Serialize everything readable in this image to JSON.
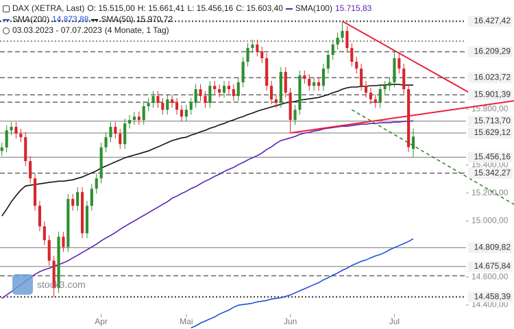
{
  "chart_data": {
    "type": "candlestick",
    "title": "DAX (XETRA, Last)",
    "ohlc_labels": [
      "O: 15.515,00",
      "H: 15.661,41",
      "L: 15.456,16",
      "C: 15.603,40"
    ],
    "date_range": "03.03.2023 - 07.07.2023",
    "period": "(4 Monate, 1 Tag)",
    "watermark": "stock3.com",
    "categories": [
      null,
      null,
      null,
      null,
      null,
      null,
      null,
      null,
      null,
      null,
      null,
      null,
      null,
      null,
      null,
      null,
      null,
      null,
      null,
      null,
      null,
      "Apr",
      null,
      null,
      null,
      null,
      null,
      null,
      null,
      null,
      null,
      null,
      null,
      null,
      null,
      null,
      null,
      null,
      null,
      "Mai",
      null,
      null,
      null,
      null,
      null,
      null,
      null,
      null,
      null,
      null,
      null,
      null,
      null,
      null,
      null,
      null,
      null,
      null,
      null,
      null,
      null,
      "Jun",
      null,
      null,
      null,
      null,
      null,
      null,
      null,
      null,
      null,
      null,
      null,
      null,
      null,
      null,
      null,
      null,
      null,
      null,
      null,
      null,
      null,
      "Jul",
      null,
      null,
      null,
      null
    ],
    "open": [
      15500,
      15526,
      15648,
      15673,
      15624,
      15599,
      15428,
      15305,
      15109,
      14962,
      14864,
      14717,
      14521,
      14888,
      14815,
      15158,
      15109,
      15207,
      14913,
      15109,
      15231,
      15305,
      15526,
      15599,
      15673,
      15624,
      15550,
      15697,
      15722,
      15746,
      15722,
      15820,
      15844,
      15893,
      15844,
      15795,
      15869,
      15844,
      15795,
      15746,
      15795,
      15844,
      15942,
      15893,
      15844,
      15966,
      15942,
      15917,
      15966,
      15942,
      15893,
      15991,
      16138,
      16236,
      16261,
      16212,
      16163,
      15966,
      15869,
      15844,
      16065,
      15917,
      15722,
      15795,
      16040,
      16016,
      15966,
      15991,
      15966,
      16089,
      16187,
      16261,
      16310,
      16358,
      16236,
      16138,
      16089,
      15966,
      15917,
      15869,
      15844,
      15942,
      15966,
      15991,
      16163,
      16089,
      15942,
      15515
    ],
    "high": [
      15561,
      15683,
      15708,
      15708,
      15659,
      15634,
      15463,
      15340,
      15144,
      14997,
      14899,
      14752,
      14923,
      14923,
      15193,
      15193,
      15242,
      15242,
      15144,
      15266,
      15340,
      15561,
      15634,
      15708,
      15708,
      15659,
      15732,
      15757,
      15781,
      15781,
      15855,
      15879,
      15928,
      15928,
      15879,
      15904,
      15904,
      15879,
      15830,
      15830,
      15879,
      15977,
      15977,
      15928,
      16001,
      16001,
      15977,
      16001,
      16001,
      15977,
      16026,
      16173,
      16271,
      16296,
      16296,
      16247,
      16198,
      16001,
      15904,
      16100,
      16100,
      15952,
      15830,
      16075,
      16075,
      16051,
      16026,
      16026,
      16124,
      16222,
      16296,
      16345,
      16427.42,
      16393,
      16271,
      16173,
      16124,
      16001,
      15952,
      15904,
      15977,
      16001,
      16026,
      16209.29,
      16198,
      16124,
      15977,
      15661.41
    ],
    "low": [
      15465,
      15491,
      15613,
      15589,
      15564,
      15393,
      15270,
      15074,
      14927,
      14829,
      14682,
      14458.39,
      14486,
      14780,
      14780,
      15074,
      15074,
      14878,
      14878,
      15074,
      15196,
      15270,
      15491,
      15564,
      15589,
      15515,
      15515,
      15662,
      15687,
      15687,
      15687,
      15785,
      15809,
      15809,
      15760,
      15760,
      15809,
      15760,
      15711,
      15711,
      15760,
      15809,
      15858,
      15809,
      15809,
      15907,
      15882,
      15882,
      15907,
      15858,
      15858,
      15956,
      16103,
      16201,
      16177,
      16128,
      15931,
      15834,
      15809,
      15809,
      15882,
      15629.12,
      15687,
      15760,
      15981,
      15931,
      15931,
      15931,
      15931,
      16054,
      16152,
      16226,
      16275,
      16201,
      16103,
      16054,
      15931,
      15882,
      15834,
      15809,
      15809,
      15907,
      15931,
      15956,
      16054,
      15907,
      15493,
      15456.16
    ],
    "close": [
      15526,
      15648,
      15673,
      15624,
      15599,
      15428,
      15305,
      15109,
      14962,
      14864,
      14717,
      14521,
      14888,
      14815,
      15158,
      15109,
      15207,
      14913,
      15109,
      15231,
      15305,
      15526,
      15599,
      15673,
      15624,
      15550,
      15697,
      15722,
      15746,
      15722,
      15820,
      15844,
      15893,
      15844,
      15795,
      15869,
      15844,
      15795,
      15746,
      15795,
      15844,
      15942,
      15893,
      15844,
      15966,
      15942,
      15917,
      15966,
      15942,
      15893,
      15991,
      16138,
      16236,
      16261,
      16212,
      16163,
      15966,
      15869,
      15844,
      16065,
      15917,
      15722,
      15795,
      16040,
      16016,
      15966,
      15991,
      15966,
      16089,
      16187,
      16261,
      16310,
      16358,
      16236,
      16138,
      16089,
      15966,
      15917,
      15869,
      15844,
      15942,
      15966,
      15991,
      16163,
      16089,
      15942,
      15528,
      15603.4
    ],
    "up_color": "#2f8f2f",
    "down_color": "#d8262b",
    "series": [
      {
        "name": "SMA(100)",
        "color": "#5b22b0",
        "legend_value": "15.715,83",
        "values": [
          14448,
          14472,
          14496,
          14521,
          14546,
          14570,
          14595,
          14619,
          14639,
          14653,
          14663,
          14678,
          14688,
          14702,
          14717,
          14737,
          14756,
          14776,
          14795,
          14815,
          14835,
          14859,
          14879,
          14898,
          14918,
          14942,
          14962,
          14982,
          15001,
          15021,
          15040,
          15060,
          15080,
          15099,
          15119,
          15138,
          15163,
          15178,
          15197,
          15212,
          15232,
          15246,
          15266,
          15285,
          15300,
          15320,
          15334,
          15354,
          15369,
          15383,
          15403,
          15418,
          15437,
          15452,
          15467,
          15486,
          15511,
          15530,
          15555,
          15575,
          15584,
          15594,
          15604,
          15619,
          15628,
          15633,
          15643,
          15648,
          15658,
          15663,
          15668,
          15673,
          15677,
          15677,
          15682,
          15687,
          15692,
          15692,
          15697,
          15697,
          15702,
          15702,
          15702,
          15707,
          15707,
          15712,
          15712,
          15715.83
        ]
      },
      {
        "name": "SMA(200)",
        "color": "#1f4fd8",
        "legend_value": "14.873,88",
        "values": [
          null,
          null,
          null,
          null,
          null,
          null,
          null,
          null,
          null,
          null,
          null,
          null,
          null,
          null,
          null,
          null,
          null,
          null,
          null,
          null,
          null,
          null,
          null,
          null,
          null,
          null,
          null,
          null,
          null,
          null,
          null,
          null,
          null,
          null,
          null,
          null,
          null,
          null,
          null,
          null,
          14237,
          14251,
          14271,
          14286,
          14301,
          14315,
          14335,
          14350,
          14364,
          14384,
          14399,
          14404,
          14408,
          14413,
          14423,
          14428,
          14433,
          14443,
          14448,
          14452,
          14462,
          14472,
          14487,
          14502,
          14516,
          14531,
          14546,
          14560,
          14580,
          14595,
          14614,
          14629,
          14648,
          14663,
          14683,
          14697,
          14712,
          14722,
          14737,
          14751,
          14761,
          14776,
          14795,
          14810,
          14825,
          14839,
          14854,
          14873.88
        ]
      },
      {
        "name": "SMA(50)",
        "color": "#111111",
        "legend_value": "15.970,72",
        "values": [
          15036,
          15085,
          15138,
          15182,
          15222,
          15251,
          15256,
          15261,
          15266,
          15271,
          15276,
          15280,
          15285,
          15285,
          15290,
          15295,
          15305,
          15315,
          15330,
          15344,
          15359,
          15379,
          15393,
          15408,
          15423,
          15437,
          15452,
          15462,
          15472,
          15481,
          15491,
          15501,
          15516,
          15530,
          15545,
          15560,
          15575,
          15584,
          15594,
          15599,
          15614,
          15624,
          15638,
          15648,
          15663,
          15673,
          15687,
          15697,
          15712,
          15722,
          15736,
          15746,
          15761,
          15771,
          15785,
          15795,
          15805,
          15815,
          15824,
          15834,
          15844,
          15849,
          15854,
          15864,
          15868,
          15873,
          15878,
          15883,
          15893,
          15903,
          15917,
          15927,
          15942,
          15952,
          15957,
          15957,
          15962,
          15962,
          15967,
          15967,
          15971,
          15971,
          15976,
          15976,
          15976,
          15971,
          15971,
          15970.72
        ]
      }
    ],
    "levels": [
      {
        "value": 16427.42,
        "label": "16.427,42",
        "style": "heavy-dotted"
      },
      {
        "value": 16285,
        "style": "dotted"
      },
      {
        "value": 16209.29,
        "label": "16.209,29",
        "style": "dashed"
      },
      {
        "value": 16023.72,
        "label": "16.023,72",
        "style": "dashed"
      },
      {
        "value": 15901.39,
        "label": "15.901,39",
        "style": "dashed"
      },
      {
        "value": 15849,
        "style": "dashed"
      },
      {
        "value": 15713.7,
        "label": "15.713,70",
        "style": "solid"
      },
      {
        "value": 15629.12,
        "label": "15.629,12",
        "style": "solid"
      },
      {
        "value": 15456.16,
        "label": "15.456,16",
        "style": "solid"
      },
      {
        "value": 15342.27,
        "label": "15.342,27",
        "style": "dashed"
      },
      {
        "value": 14809.82,
        "label": "14.809,82",
        "style": "solid"
      },
      {
        "value": 14675.84,
        "label": "14.675,84",
        "style": "solid"
      },
      {
        "value": 14609,
        "style": "dashed"
      },
      {
        "value": 14458.39,
        "label": "14.458,39",
        "style": "heavy-dotted"
      }
    ],
    "trendlines": [
      {
        "color": "#e8203a",
        "dash": false,
        "x": [
          72,
          98.8
        ],
        "y": [
          16427.42,
          15918
        ]
      },
      {
        "color": "#e8203a",
        "dash": false,
        "x": [
          61,
          108.3
        ],
        "y": [
          15629.12,
          15859
        ]
      },
      {
        "color": "#2e7d22",
        "dash": true,
        "x": [
          74,
          108.3
        ],
        "y": [
          15795,
          15119
        ]
      }
    ],
    "xlim": [
      -0.4,
      108.3
    ],
    "ylim": [
      14229,
      16579
    ],
    "yticks": [
      {
        "value": 14400,
        "label": "14.400,00"
      },
      {
        "value": 14600,
        "label": "14.600,00"
      },
      {
        "value": 15000,
        "label": "15.000,00"
      },
      {
        "value": 15200,
        "label": "15.200,00"
      },
      {
        "value": 15400,
        "label": "15.400,00"
      },
      {
        "value": 15800,
        "label": "15.800,00"
      }
    ]
  }
}
